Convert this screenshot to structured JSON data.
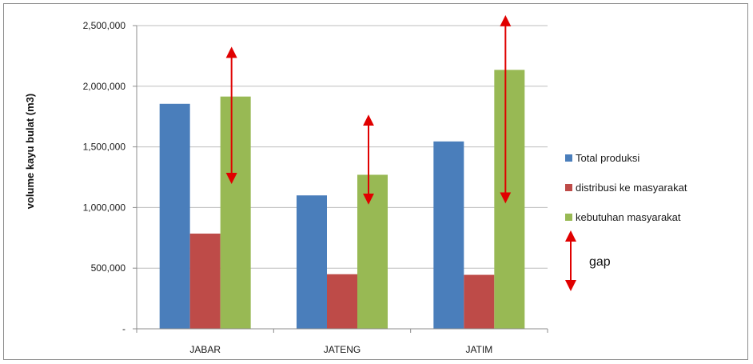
{
  "chart_data": {
    "type": "bar",
    "title": "",
    "xlabel": "",
    "ylabel": "volume kayu bulat (m3)",
    "categories": [
      "JABAR",
      "JATENG",
      "JATIM"
    ],
    "series": [
      {
        "name": "Total produksi",
        "color": "#4a7ebb",
        "values": [
          1855000,
          1100000,
          1545000
        ]
      },
      {
        "name": "distribusi ke masyarakat",
        "color": "#be4b48",
        "values": [
          785000,
          450000,
          445000
        ]
      },
      {
        "name": "kebutuhan masyarakat",
        "color": "#98b954",
        "values": [
          1915000,
          1270000,
          2135000
        ]
      }
    ],
    "ylim": [
      0,
      2500000
    ],
    "yticks": [
      0,
      500000,
      1000000,
      1500000,
      2000000,
      2500000
    ],
    "ytick_labels": [
      "-",
      "500,000",
      "1,000,000",
      "1,500,000",
      "2,000,000",
      "2,500,000"
    ],
    "grid": true,
    "legend_position": "right",
    "gap_annotations": [
      {
        "category": "JABAR",
        "y_top": 2280000,
        "y_bottom": 1240000
      },
      {
        "category": "JATENG",
        "y_top": 1720000,
        "y_bottom": 1070000
      },
      {
        "category": "JATIM",
        "y_top": 2540000,
        "y_bottom": 1080000
      }
    ],
    "gap_legend_label": "gap",
    "annotation_color": "#e00000",
    "gridline_color": "#bdbdbd"
  }
}
